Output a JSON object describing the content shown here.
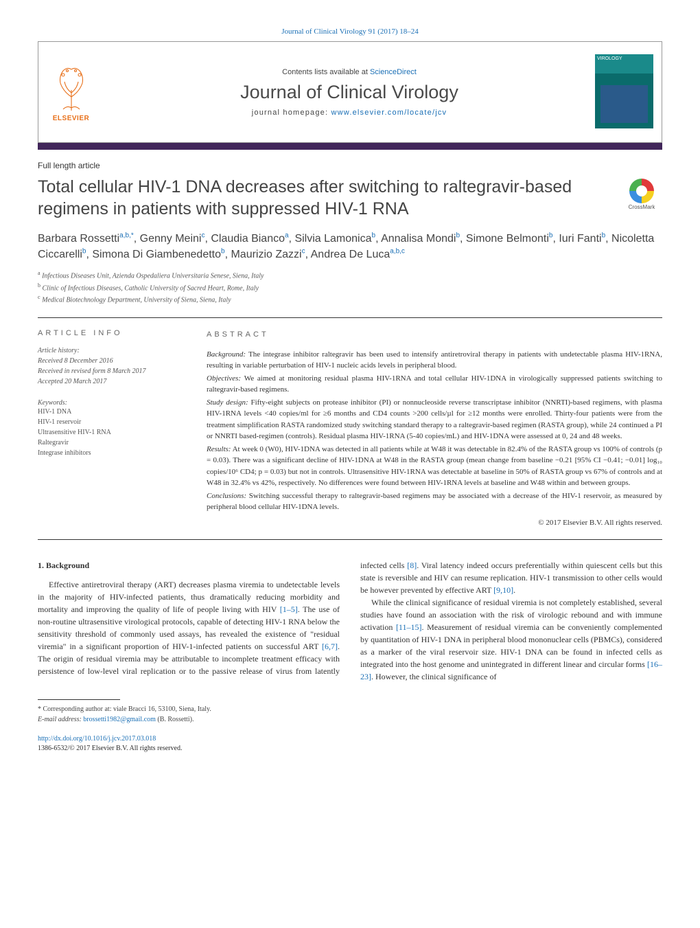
{
  "journal_citation": "Journal of Clinical Virology 91 (2017) 18–24",
  "header": {
    "contents_prefix": "Contents lists available at ",
    "contents_link": "ScienceDirect",
    "journal_name": "Journal of Clinical Virology",
    "homepage_prefix": "journal homepage: ",
    "homepage_link": "www.elsevier.com/locate/jcv",
    "elsevier_label": "ELSEVIER",
    "cover_label": "VIROLOGY"
  },
  "article_type": "Full length article",
  "title": "Total cellular HIV-1 DNA decreases after switching to raltegravir-based regimens in patients with suppressed HIV-1 RNA",
  "crossmark_label": "CrossMark",
  "authors_html": "Barbara Rossetti<sup>a,b,*</sup>, Genny Meini<sup>c</sup>, Claudia Bianco<sup>a</sup>, Silvia Lamonica<sup>b</sup>, Annalisa Mondi<sup>b</sup>, Simone Belmonti<sup>b</sup>, Iuri Fanti<sup>b</sup>, Nicoletta Ciccarelli<sup>b</sup>, Simona Di Giambenedetto<sup>b</sup>, Maurizio Zazzi<sup>c</sup>, Andrea De Luca<sup>a,b,c</sup>",
  "affiliations": [
    {
      "sup": "a",
      "text": "Infectious Diseases Unit, Azienda Ospedaliera Universitaria Senese, Siena, Italy"
    },
    {
      "sup": "b",
      "text": "Clinic of Infectious Diseases, Catholic University of Sacred Heart, Rome, Italy"
    },
    {
      "sup": "c",
      "text": "Medical Biotechnology Department, University of Siena, Siena, Italy"
    }
  ],
  "article_info": {
    "heading": "article info",
    "history_label": "Article history:",
    "received": "Received 8 December 2016",
    "revised": "Received in revised form 8 March 2017",
    "accepted": "Accepted 20 March 2017",
    "keywords_label": "Keywords:",
    "keywords": [
      "HIV-1 DNA",
      "HIV-1 reservoir",
      "Ultrasensitive HIV-1 RNA",
      "Raltegravir",
      "Integrase inhibitors"
    ]
  },
  "abstract": {
    "heading": "abstract",
    "sections": [
      {
        "label": "Background:",
        "text": " The integrase inhibitor raltegravir has been used to intensify antiretroviral therapy in patients with undetectable plasma HIV-1RNA, resulting in variable perturbation of HIV-1 nucleic acids levels in peripheral blood."
      },
      {
        "label": "Objectives:",
        "text": " We aimed at monitoring residual plasma HIV-1RNA and total cellular HIV-1DNA in virologically suppressed patients switching to raltegravir-based regimens."
      },
      {
        "label": "Study design:",
        "text": " Fifty-eight subjects on protease inhibitor (PI) or nonnucleoside reverse transcriptase inhibitor (NNRTI)-based regimens, with plasma HIV-1RNA levels <40 copies/ml for ≥6 months and CD4 counts >200 cells/µl for ≥12 months were enrolled. Thirty-four patients were from the treatment simplification RASTA randomized study switching standard therapy to a raltegravir-based regimen (RASTA group), while 24 continued a PI or NNRTI based-regimen (controls). Residual plasma HIV-1RNA (5-40 copies/mL) and HIV-1DNA were assessed at 0, 24 and 48 weeks."
      },
      {
        "label": "Results:",
        "text": " At week 0 (W0), HIV-1DNA was detected in all patients while at W48 it was detectable in 82.4% of the RASTA group vs 100% of controls (p = 0.03). There was a significant decline of HIV-1DNA at W48 in the RASTA group (mean change from baseline −0.21 [95% CI −0.41; −0.01] log₁₀ copies/10⁶ CD4; p = 0.03) but not in controls. Ultrasensitive HIV-1RNA was detectable at baseline in 50% of RASTA group vs 67% of controls and at W48 in 32.4% vs 42%, respectively. No differences were found between HIV-1RNA levels at baseline and W48 within and between groups."
      },
      {
        "label": "Conclusions:",
        "text": " Switching successful therapy to raltegravir-based regimens may be associated with a decrease of the HIV-1 reservoir, as measured by peripheral blood cellular HIV-1DNA levels."
      }
    ],
    "copyright": "© 2017 Elsevier B.V. All rights reserved."
  },
  "body": {
    "section_number": "1.",
    "section_title": "Background",
    "col1_p1": "Effective antiretroviral therapy (ART) decreases plasma viremia to undetectable levels in the majority of HIV-infected patients, thus dramatically reducing morbidity and mortality and improving the quality of life of people living with HIV ",
    "col1_ref1": "[1–5]",
    "col1_p1b": ". The use of non-routine ultrasensitive virological protocols, capable of detecting HIV-1 RNA below the sensitivity threshold of commonly used assays, has revealed the existence of \"residual viremia\" in a significant proportion of HIV-1-infected patients on successful ART ",
    "col1_ref2": "[6,7]",
    "col1_p1c": ". The origin of residual viremia may be attributable to incomplete",
    "col2_p1a": "treatment efficacy with persistence of low-level viral replication or to the passive release of virus from latently infected cells ",
    "col2_ref1": "[8]",
    "col2_p1b": ". Viral latency indeed occurs preferentially within quiescent cells but this state is reversible and HIV can resume replication. HIV-1 transmission to other cells would be however prevented by effective ART ",
    "col2_ref2": "[9,10]",
    "col2_p1c": ".",
    "col2_p2a": "While the clinical significance of residual viremia is not completely established, several studies have found an association with the risk of virologic rebound and with immune activation ",
    "col2_ref3": "[11–15]",
    "col2_p2b": ". Measurement of residual viremia can be conveniently complemented by quantitation of HIV-1 DNA in peripheral blood mononuclear cells (PBMCs), considered as a marker of the viral reservoir size. HIV-1 DNA can be found in infected cells as integrated into the host genome and unintegrated in different linear and circular forms ",
    "col2_ref4": "[16–23]",
    "col2_p2c": ". However, the clinical significance of"
  },
  "footnotes": {
    "corresponding": "* Corresponding author at: viale Bracci 16, 53100, Siena, Italy.",
    "email_label": "E-mail address: ",
    "email": "brossetti1982@gmail.com",
    "email_suffix": " (B. Rossetti)."
  },
  "doi": {
    "url": "http://dx.doi.org/10.1016/j.jcv.2017.03.018",
    "issn_line": "1386-6532/© 2017 Elsevier B.V. All rights reserved."
  },
  "colors": {
    "link": "#1a6fb5",
    "elsevier": "#e8701a",
    "bar": "#41265a",
    "text": "#333333"
  }
}
